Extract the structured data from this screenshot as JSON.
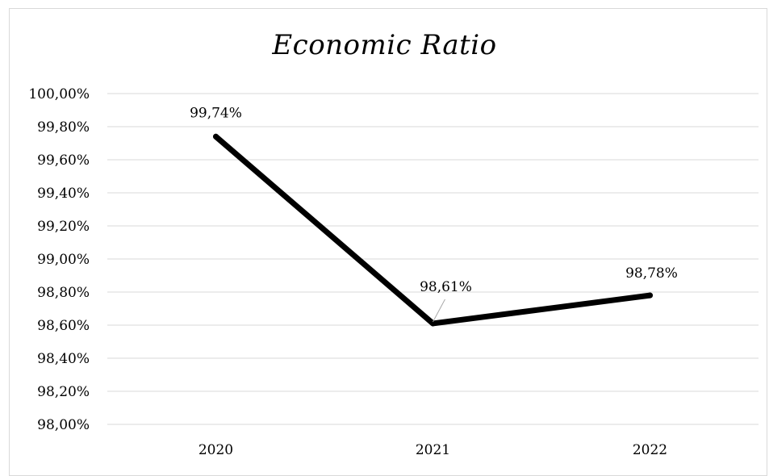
{
  "chart_data": {
    "type": "line",
    "title": "Economic Ratio",
    "xlabel": "",
    "ylabel": "",
    "categories": [
      "2020",
      "2021",
      "2022"
    ],
    "series": [
      {
        "values": [
          99.74,
          98.61,
          98.78
        ],
        "data_labels": [
          "99,74%",
          "98,61%",
          "98,78%"
        ],
        "color": "#000000"
      }
    ],
    "ylim": [
      98.0,
      100.0
    ],
    "y_ticks": [
      98.0,
      98.2,
      98.4,
      98.6,
      98.8,
      99.0,
      99.2,
      99.4,
      99.6,
      99.8,
      100.0
    ],
    "y_tick_labels": [
      "98,00%",
      "98,20%",
      "98,40%",
      "98,60%",
      "98,80%",
      "99,00%",
      "99,20%",
      "99,40%",
      "99,60%",
      "99,80%",
      "100,00%"
    ],
    "grid": true,
    "legend": "none",
    "gridline_color": "#d9d9d9",
    "leader_line_color": "#a6a6a6"
  }
}
